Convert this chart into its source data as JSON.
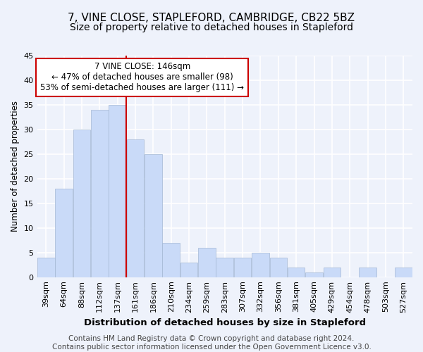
{
  "title": "7, VINE CLOSE, STAPLEFORD, CAMBRIDGE, CB22 5BZ",
  "subtitle": "Size of property relative to detached houses in Stapleford",
  "xlabel": "Distribution of detached houses by size in Stapleford",
  "ylabel": "Number of detached properties",
  "categories": [
    "39sqm",
    "64sqm",
    "88sqm",
    "112sqm",
    "137sqm",
    "161sqm",
    "186sqm",
    "210sqm",
    "234sqm",
    "259sqm",
    "283sqm",
    "307sqm",
    "332sqm",
    "356sqm",
    "381sqm",
    "405sqm",
    "429sqm",
    "454sqm",
    "478sqm",
    "503sqm",
    "527sqm"
  ],
  "values": [
    4,
    18,
    30,
    34,
    35,
    28,
    25,
    7,
    3,
    6,
    4,
    4,
    5,
    4,
    2,
    1,
    2,
    0,
    2,
    0,
    2
  ],
  "bar_color": "#c9daf8",
  "bar_edge_color": "#a4b8d4",
  "annotation_box_text_line1": "7 VINE CLOSE: 146sqm",
  "annotation_box_text_line2": "← 47% of detached houses are smaller (98)",
  "annotation_box_text_line3": "53% of semi-detached houses are larger (111) →",
  "annotation_box_color": "#ffffff",
  "annotation_box_edge_color": "#cc0000",
  "vline_color": "#cc0000",
  "vline_x": 4.5,
  "ylim": [
    0,
    45
  ],
  "yticks": [
    0,
    5,
    10,
    15,
    20,
    25,
    30,
    35,
    40,
    45
  ],
  "footer_line1": "Contains HM Land Registry data © Crown copyright and database right 2024.",
  "footer_line2": "Contains public sector information licensed under the Open Government Licence v3.0.",
  "background_color": "#eef2fb",
  "grid_color": "#ffffff",
  "title_fontsize": 11,
  "subtitle_fontsize": 10,
  "xlabel_fontsize": 9.5,
  "ylabel_fontsize": 8.5,
  "footer_fontsize": 7.5,
  "annot_fontsize": 8.5,
  "tick_fontsize": 8
}
